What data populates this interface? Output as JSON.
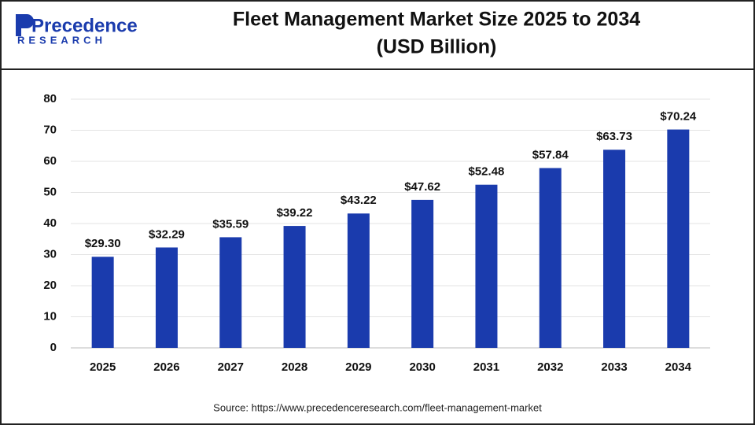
{
  "logo": {
    "name": "Precedence",
    "tagline": "RESEARCH"
  },
  "chart_data": {
    "type": "bar",
    "title": "Fleet Management Market Size 2025 to 2034",
    "subtitle": "(USD Billion)",
    "categories": [
      "2025",
      "2026",
      "2027",
      "2028",
      "2029",
      "2030",
      "2031",
      "2032",
      "2033",
      "2034"
    ],
    "values": [
      29.3,
      32.29,
      35.59,
      39.22,
      43.22,
      47.62,
      52.48,
      57.84,
      63.73,
      70.24
    ],
    "value_labels": [
      "$29.30",
      "$32.29",
      "$35.59",
      "$39.22",
      "$43.22",
      "$47.62",
      "$52.48",
      "$57.84",
      "$63.73",
      "$70.24"
    ],
    "color": "#1a3bad",
    "ylim": [
      0,
      80
    ],
    "yticks": [
      0,
      10,
      20,
      30,
      40,
      50,
      60,
      70,
      80
    ],
    "grid": true,
    "source": "Source: https://www.precedenceresearch.com/fleet-management-market"
  }
}
